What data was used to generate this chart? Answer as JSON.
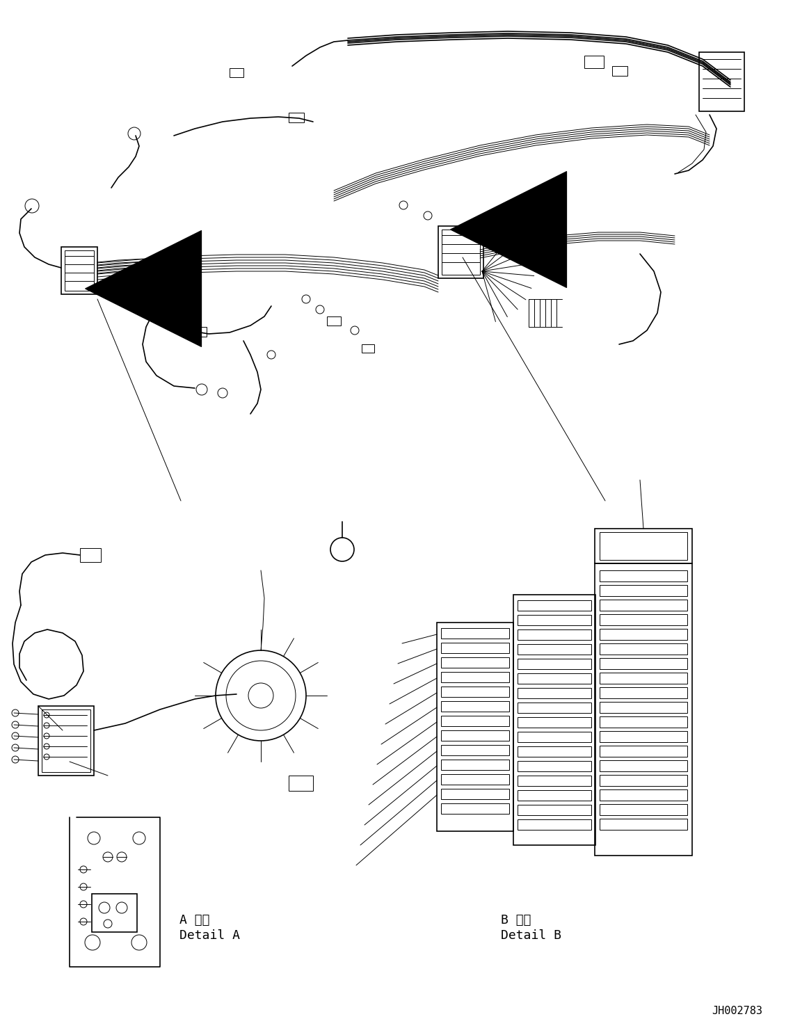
{
  "background_color": "#ffffff",
  "line_color": "#000000",
  "fig_width": 11.63,
  "fig_height": 14.88,
  "dpi": 100,
  "label_A": "A",
  "label_B": "B",
  "detail_A_jp": "A 詳細",
  "detail_A_en": "Detail A",
  "detail_B_jp": "B 詳細",
  "detail_B_en": "Detail B",
  "part_number": "JH002783"
}
